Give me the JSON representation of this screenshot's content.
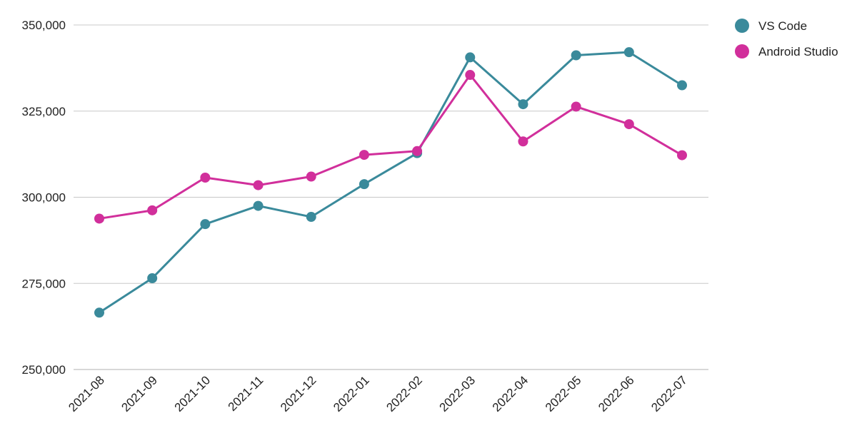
{
  "chart_data": {
    "type": "line",
    "categories": [
      "2021-08",
      "2021-09",
      "2021-10",
      "2021-11",
      "2021-12",
      "2022-01",
      "2022-02",
      "2022-03",
      "2022-04",
      "2022-05",
      "2022-06",
      "2022-07"
    ],
    "series": [
      {
        "name": "VS Code",
        "color": "#3a8a9b",
        "values": [
          266500,
          276500,
          292200,
          297500,
          294300,
          303800,
          312800,
          340600,
          327000,
          341200,
          342100,
          332500
        ]
      },
      {
        "name": "Android Studio",
        "color": "#d12f9b",
        "values": [
          293800,
          296200,
          305700,
          303500,
          306000,
          312300,
          313400,
          335500,
          316200,
          326300,
          321200,
          312200
        ]
      }
    ],
    "yticks": [
      250000,
      275000,
      300000,
      325000,
      350000
    ],
    "ylim": [
      250000,
      350000
    ],
    "grid": true,
    "legend_position": "top-right",
    "title": "",
    "xlabel": "",
    "ylabel": ""
  }
}
